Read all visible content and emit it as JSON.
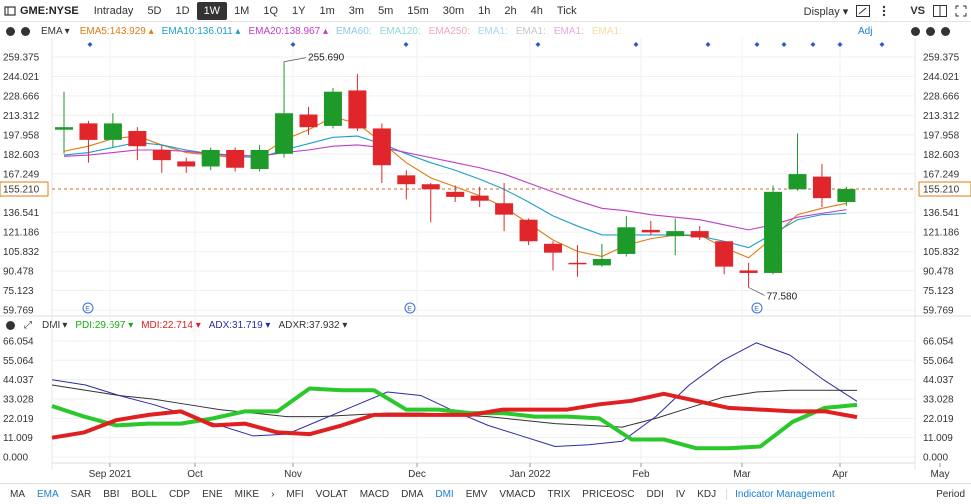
{
  "toolbar": {
    "ticker": "GME:NYSE",
    "intervals": [
      "Intraday",
      "5D",
      "1D",
      "1W",
      "1M",
      "1Q",
      "1Y",
      "1m",
      "3m",
      "5m",
      "15m",
      "30m",
      "1h",
      "2h",
      "4h",
      "Tick"
    ],
    "active_interval": "1W",
    "display_label": "Display",
    "vs_label": "VS"
  },
  "main_indicators": {
    "name": "EMA",
    "items": [
      {
        "label": "EMA5:143.929",
        "color": "#e07b13"
      },
      {
        "label": "EMA10:136.011",
        "color": "#1ca0c8"
      },
      {
        "label": "EMA20:138.967",
        "color": "#c03cc8"
      },
      {
        "label": "EMA60:",
        "color": "#8fc8e8"
      },
      {
        "label": "EMA120:",
        "color": "#8fd8d8"
      },
      {
        "label": "EMA250:",
        "color": "#f0a8b8"
      },
      {
        "label": "EMA1:",
        "color": "#a8d8f0"
      },
      {
        "label": "EMA1:",
        "color": "#c8c8c8"
      },
      {
        "label": "EMA1:",
        "color": "#e8a8e0"
      },
      {
        "label": "EMA1:",
        "color": "#f0e0a0"
      }
    ],
    "adj_label": "Adj"
  },
  "sub_indicators": {
    "name": "DMI",
    "items": [
      {
        "label": "PDI:29.697",
        "color": "#1aa81a"
      },
      {
        "label": "MDI:22.714",
        "color": "#e02020"
      },
      {
        "label": "ADX:31.719",
        "color": "#2a2aa8"
      },
      {
        "label": "ADXR:37.932",
        "color": "#333333"
      }
    ]
  },
  "price_axis": {
    "ticks": [
      "259.375",
      "244.021",
      "228.666",
      "213.312",
      "197.958",
      "182.603",
      "167.249",
      "155.210",
      "136.541",
      "121.186",
      "105.832",
      "90.478",
      "75.123",
      "59.769"
    ],
    "current": "155.210"
  },
  "dmi_axis": {
    "ticks": [
      "66.054",
      "55.064",
      "44.037",
      "33.028",
      "22.019",
      "11.009",
      "0.000"
    ]
  },
  "x_labels": [
    "Sep 2021",
    "Oct",
    "Nov",
    "Dec",
    "Jan 2022",
    "Feb",
    "Mar",
    "Apr",
    "May"
  ],
  "annotations": {
    "high": "255.690",
    "low": "77.580"
  },
  "event_marker": "E",
  "bottom_bar": {
    "items": [
      "MA",
      "EMA",
      "SAR",
      "BBI",
      "BOLL",
      "CDP",
      "ENE",
      "MIKE",
      "MFI",
      "VOLAT",
      "MACD",
      "DMA",
      "DMI",
      "EMV",
      "VMACD",
      "TRIX",
      "PRICEOSC",
      "DDI",
      "IV",
      "KDJ"
    ],
    "active": [
      "EMA",
      "DMI"
    ],
    "management": "Indicator Management",
    "period": "Period"
  },
  "chart_data": [
    {
      "type": "candlestick",
      "title": "GME:NYSE 1W",
      "y_range": [
        59.769,
        259.375
      ],
      "current_price": 155.21,
      "candles": [
        {
          "o": 202,
          "h": 232,
          "l": 183,
          "c": 204
        },
        {
          "o": 207,
          "h": 209,
          "l": 176,
          "c": 194
        },
        {
          "o": 194,
          "h": 215,
          "l": 188,
          "c": 207
        },
        {
          "o": 201,
          "h": 204,
          "l": 178,
          "c": 189
        },
        {
          "o": 186,
          "h": 190,
          "l": 168,
          "c": 178
        },
        {
          "o": 177,
          "h": 180,
          "l": 168,
          "c": 173
        },
        {
          "o": 173,
          "h": 188,
          "l": 170,
          "c": 186
        },
        {
          "o": 186,
          "h": 188,
          "l": 169,
          "c": 172
        },
        {
          "o": 171,
          "h": 190,
          "l": 169,
          "c": 186
        },
        {
          "o": 183,
          "h": 255.69,
          "l": 180,
          "c": 215
        },
        {
          "o": 214,
          "h": 220,
          "l": 198,
          "c": 204
        },
        {
          "o": 205,
          "h": 235,
          "l": 203,
          "c": 232
        },
        {
          "o": 233,
          "h": 246,
          "l": 201,
          "c": 203
        },
        {
          "o": 203,
          "h": 207,
          "l": 160,
          "c": 174
        },
        {
          "o": 166,
          "h": 170,
          "l": 147,
          "c": 159
        },
        {
          "o": 159,
          "h": 160,
          "l": 129,
          "c": 155
        },
        {
          "o": 153,
          "h": 158,
          "l": 145,
          "c": 149
        },
        {
          "o": 150,
          "h": 157,
          "l": 141,
          "c": 146
        },
        {
          "o": 144,
          "h": 160,
          "l": 122,
          "c": 135
        },
        {
          "o": 131,
          "h": 132,
          "l": 111,
          "c": 114
        },
        {
          "o": 112,
          "h": 114,
          "l": 91,
          "c": 105
        },
        {
          "o": 97,
          "h": 111,
          "l": 86,
          "c": 96
        },
        {
          "o": 95,
          "h": 112,
          "l": 94,
          "c": 100
        },
        {
          "o": 104,
          "h": 134,
          "l": 102,
          "c": 125
        },
        {
          "o": 123,
          "h": 130,
          "l": 119,
          "c": 121
        },
        {
          "o": 118,
          "h": 132,
          "l": 103,
          "c": 122
        },
        {
          "o": 122,
          "h": 126,
          "l": 115,
          "c": 117
        },
        {
          "o": 114,
          "h": 114,
          "l": 88,
          "c": 94
        },
        {
          "o": 91,
          "h": 97,
          "l": 77.58,
          "c": 89
        },
        {
          "o": 89,
          "h": 158,
          "l": 88,
          "c": 153
        },
        {
          "o": 155,
          "h": 199,
          "l": 154,
          "c": 167
        },
        {
          "o": 165,
          "h": 175,
          "l": 141,
          "c": 148
        },
        {
          "o": 145,
          "h": 157,
          "l": 142,
          "c": 155.21
        }
      ],
      "series": [
        {
          "name": "EMA5",
          "values": [
            185,
            189,
            195,
            197,
            190,
            184,
            182,
            180,
            181,
            194,
            202,
            212,
            207,
            192,
            176,
            164,
            157,
            150,
            141,
            128,
            115,
            106,
            102,
            111,
            116,
            119,
            119,
            109,
            101,
            117,
            135,
            140,
            143.929
          ]
        },
        {
          "name": "EMA10",
          "values": [
            182,
            184,
            188,
            192,
            190,
            186,
            183,
            181,
            180,
            186,
            191,
            196,
            197,
            191,
            183,
            176,
            170,
            163,
            155,
            145,
            134,
            126,
            119,
            119,
            119,
            119,
            118,
            114,
            109,
            120,
            131,
            135,
            136.011
          ]
        },
        {
          "name": "EMA20",
          "values": [
            181,
            182,
            184,
            186,
            186,
            185,
            183,
            182,
            181,
            184,
            186,
            189,
            190,
            188,
            184,
            180,
            176,
            172,
            167,
            160,
            153,
            146,
            140,
            138,
            135,
            133,
            131,
            127,
            123,
            127,
            133,
            136,
            138.967
          ]
        }
      ]
    },
    {
      "type": "line",
      "title": "DMI",
      "y_range": [
        0,
        66.054
      ],
      "series": [
        {
          "name": "PDI",
          "values": [
            29,
            23,
            18,
            19,
            19,
            22,
            26,
            26,
            39,
            38,
            38,
            27,
            27,
            25,
            25,
            23,
            23,
            22,
            10,
            10,
            5,
            5,
            6,
            20,
            28,
            29.697
          ]
        },
        {
          "name": "MDI",
          "values": [
            11,
            14,
            21,
            24,
            26,
            18,
            19,
            14,
            13,
            18,
            24,
            24,
            24,
            24,
            27,
            27,
            27,
            30,
            32,
            36,
            32,
            28,
            27,
            26,
            26,
            22.714
          ]
        },
        {
          "name": "ADX",
          "values": [
            44,
            41,
            35,
            30,
            24,
            18,
            12,
            13,
            21,
            29,
            37,
            35,
            26,
            18,
            12,
            6,
            7,
            9,
            23,
            41,
            55,
            65,
            58,
            44,
            31.719
          ]
        },
        {
          "name": "ADXR",
          "values": [
            41,
            38,
            35,
            33,
            30,
            27,
            25,
            23,
            23,
            24,
            25,
            25,
            24,
            23,
            21,
            19,
            18,
            17,
            22,
            28,
            34,
            37,
            38,
            38,
            37.932
          ]
        }
      ]
    }
  ]
}
